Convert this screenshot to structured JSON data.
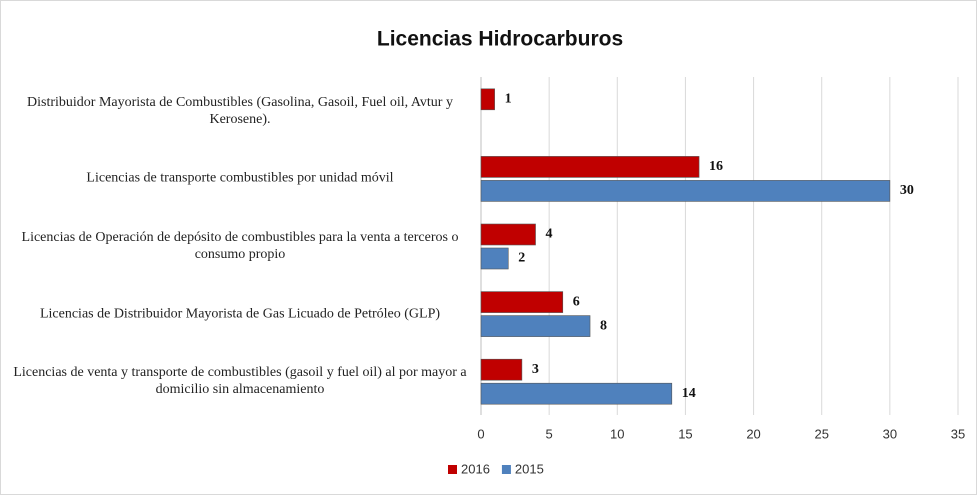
{
  "chart_data": {
    "type": "hbar",
    "title": "Licencias Hidrocarburos",
    "categories": [
      "Distribuidor Mayorista de Combustibles (Gasolina, Gasoil, Fuel oil, Avtur y Kerosene).",
      "Licencias de transporte combustibles por unidad móvil",
      "Licencias de Operación de depósito de combustibles para la venta a terceros o consumo propio",
      "Licencias de Distribuidor Mayorista de Gas Licuado de Petróleo (GLP)",
      "Licencias de venta y transporte de combustibles (gasoil y fuel oil) al por mayor a domicilio sin almacenamiento"
    ],
    "series": [
      {
        "name": "2016",
        "color": "#c00000",
        "values": [
          1,
          16,
          4,
          6,
          3
        ]
      },
      {
        "name": "2015",
        "color": "#4f81bd",
        "values": [
          null,
          30,
          2,
          8,
          14
        ]
      }
    ],
    "xlim": [
      0,
      35
    ],
    "xticks": [
      0,
      5,
      10,
      15,
      20,
      25,
      30,
      35
    ],
    "grid": true,
    "legend": "bottom"
  }
}
